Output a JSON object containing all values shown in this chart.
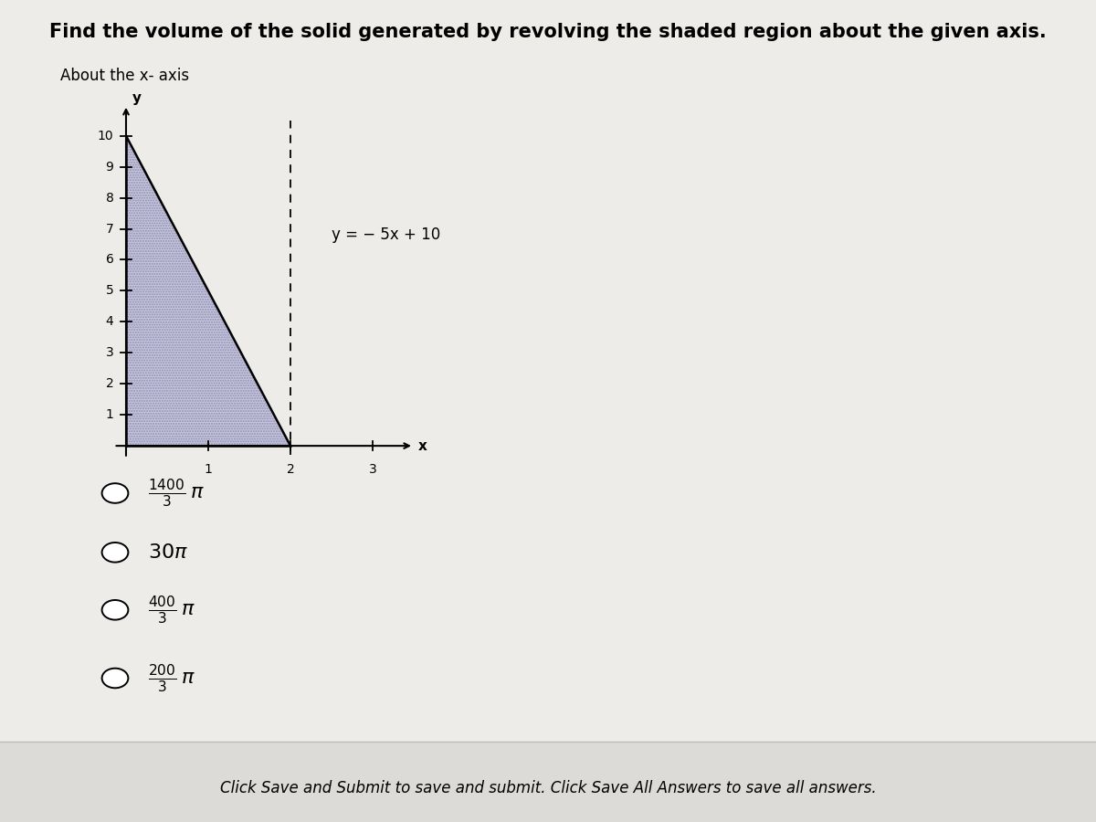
{
  "title": "Find the volume of the solid generated by revolving the shaded region about the given axis.",
  "subtitle": "About the x- axis",
  "equation_label": "y = − 5x + 10",
  "bg_color": "#eeece8",
  "plot_bg": "#eeece8",
  "shade_color": "#c5c5de",
  "line_color": "#000000",
  "dashed_x": 2.0,
  "xlim": [
    -0.2,
    3.6
  ],
  "ylim": [
    -0.6,
    11.2
  ],
  "xticks": [
    1,
    2,
    3
  ],
  "yticks": [
    1,
    2,
    3,
    4,
    5,
    6,
    7,
    8,
    9,
    10
  ],
  "xlabel": "x",
  "ylabel": "y",
  "choices": [
    {
      "label": "$\\frac{1400}{3}\\,\\pi$"
    },
    {
      "label": "$30\\pi$"
    },
    {
      "label": "$\\frac{400}{3}\\,\\pi$"
    },
    {
      "label": "$\\frac{200}{3}\\,\\pi$"
    }
  ],
  "footer": "Click Save and Submit to save and submit. Click Save All Answers to save all answers.",
  "title_fontsize": 15,
  "subtitle_fontsize": 12,
  "tick_fontsize": 10,
  "choice_fontsize": 16,
  "footer_fontsize": 12
}
